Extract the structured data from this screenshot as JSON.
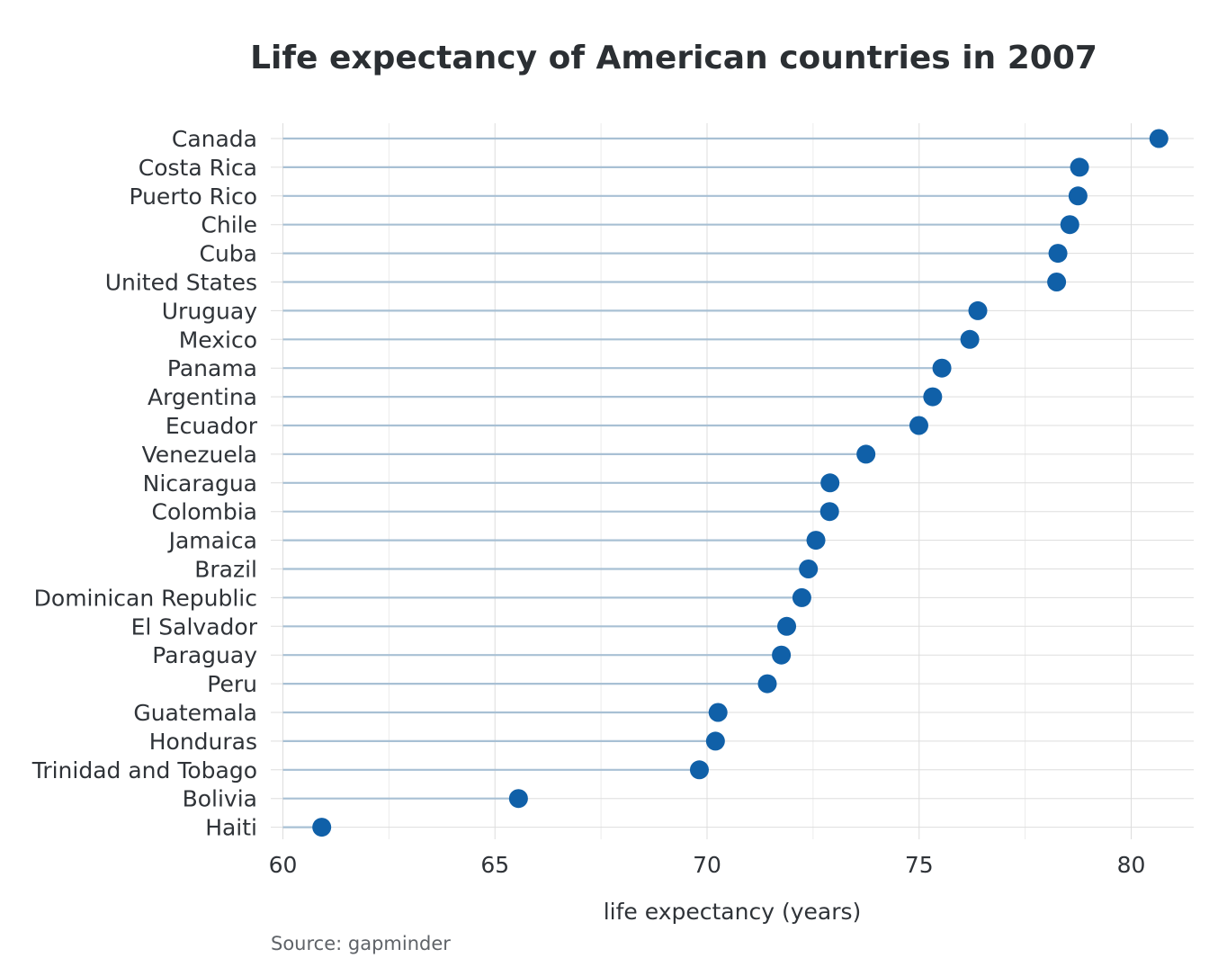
{
  "chart_data": {
    "type": "scatter",
    "title": "Life expectancy of American countries in 2007",
    "xlabel": "life expectancy (years)",
    "ylabel": "",
    "caption": "Source: gapminder",
    "xlim": [
      60,
      81.4
    ],
    "x_ticks": [
      60,
      65,
      70,
      75,
      80
    ],
    "grid": true,
    "legend": "none",
    "colors": {
      "point": "#1060a8",
      "stem": "#a8c0d4",
      "grid": "#dddddd"
    },
    "countries": [
      "Canada",
      "Costa Rica",
      "Puerto Rico",
      "Chile",
      "Cuba",
      "United States",
      "Uruguay",
      "Mexico",
      "Panama",
      "Argentina",
      "Ecuador",
      "Venezuela",
      "Nicaragua",
      "Colombia",
      "Jamaica",
      "Brazil",
      "Dominican Republic",
      "El Salvador",
      "Paraguay",
      "Peru",
      "Guatemala",
      "Honduras",
      "Trinidad and Tobago",
      "Bolivia",
      "Haiti"
    ],
    "values": [
      80.653,
      78.782,
      78.746,
      78.553,
      78.273,
      78.242,
      76.384,
      76.195,
      75.537,
      75.32,
      74.994,
      73.747,
      72.899,
      72.889,
      72.567,
      72.39,
      72.235,
      71.878,
      71.752,
      71.421,
      70.259,
      70.198,
      69.819,
      65.554,
      60.916
    ]
  }
}
